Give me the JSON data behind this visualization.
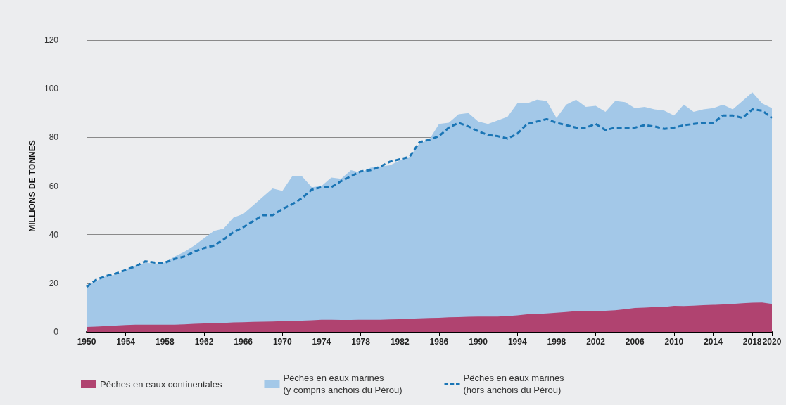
{
  "chart_data": {
    "type": "area",
    "ylabel": "MILLIONS DE TONNES",
    "stacked": true,
    "grid": "y",
    "legend": "bottom left",
    "marker": "none",
    "x": [
      1950,
      1951,
      1952,
      1953,
      1954,
      1955,
      1956,
      1957,
      1958,
      1959,
      1960,
      1961,
      1962,
      1963,
      1964,
      1965,
      1966,
      1967,
      1968,
      1969,
      1970,
      1971,
      1972,
      1973,
      1974,
      1975,
      1976,
      1977,
      1978,
      1979,
      1980,
      1981,
      1982,
      1983,
      1984,
      1985,
      1986,
      1987,
      1988,
      1989,
      1990,
      1991,
      1992,
      1993,
      1994,
      1995,
      1996,
      1997,
      1998,
      1999,
      2000,
      2001,
      2002,
      2003,
      2004,
      2005,
      2006,
      2007,
      2008,
      2009,
      2010,
      2011,
      2012,
      2013,
      2014,
      2015,
      2016,
      2017,
      2018,
      2019,
      2020
    ],
    "xlim": [
      1950,
      2020
    ],
    "xticks": [
      1950,
      1954,
      1958,
      1962,
      1966,
      1970,
      1974,
      1978,
      1982,
      1986,
      1990,
      1994,
      1998,
      2002,
      2006,
      2010,
      2014,
      2018,
      2020
    ],
    "ylim": [
      0,
      120
    ],
    "yticks": [
      0,
      20,
      40,
      60,
      80,
      100,
      120
    ],
    "series": [
      {
        "name": "Pêches en eaux continentales",
        "color": "#b04370",
        "values": [
          2,
          2.2,
          2.4,
          2.6,
          2.8,
          3,
          3,
          3,
          3,
          3,
          3.1,
          3.3,
          3.5,
          3.6,
          3.7,
          3.9,
          4,
          4.1,
          4.2,
          4.3,
          4.4,
          4.5,
          4.6,
          4.8,
          5,
          5,
          4.9,
          4.9,
          5,
          5,
          5,
          5.1,
          5.2,
          5.4,
          5.6,
          5.7,
          5.8,
          6,
          6.1,
          6.2,
          6.3,
          6.3,
          6.3,
          6.5,
          6.8,
          7.2,
          7.4,
          7.6,
          7.9,
          8.2,
          8.5,
          8.6,
          8.6,
          8.7,
          8.9,
          9.3,
          9.8,
          10,
          10.2,
          10.3,
          10.7,
          10.6,
          10.8,
          11,
          11.1,
          11.3,
          11.5,
          11.8,
          12,
          12.1,
          11.5
        ]
      },
      {
        "name": "Pêches en eaux marines\n(y compris anchois du Pérou)",
        "color": "#a3c8e8",
        "values": [
          17,
          18.8,
          20.6,
          20.9,
          22.7,
          24,
          25.5,
          25,
          25.5,
          28,
          29.9,
          32.2,
          35,
          37.9,
          38.8,
          43.1,
          44.5,
          47.9,
          51.3,
          54.7,
          53.6,
          59.5,
          59.4,
          54.7,
          55,
          58.5,
          58.1,
          61.6,
          60.5,
          62.5,
          63,
          63.4,
          65.3,
          66.6,
          71.9,
          73.3,
          79.7,
          80,
          83.4,
          83.8,
          80.2,
          79.2,
          80.7,
          82,
          87.2,
          86.8,
          88.1,
          87.4,
          80.1,
          85.3,
          87,
          83.9,
          84.4,
          81.8,
          86.1,
          85.2,
          82.2,
          82.5,
          81.3,
          80.7,
          78.3,
          82.9,
          79.7,
          80.5,
          80.9,
          82.2,
          80,
          83.2,
          86.5,
          81.9,
          80.5
        ]
      },
      {
        "name": "Pêches en eaux marines\n(hors anchois du Pérou)",
        "type": "line",
        "line_style": "dashed",
        "color": "#1a75b5",
        "values": [
          18.5,
          21.5,
          23,
          24,
          25.5,
          27,
          29,
          28.5,
          28.5,
          30,
          31,
          33,
          34.5,
          35.5,
          38,
          41,
          43,
          45.5,
          48,
          48,
          50.5,
          52.5,
          55,
          58.5,
          59.5,
          59.5,
          62,
          64,
          66,
          66.5,
          68,
          70,
          71,
          72,
          78,
          79,
          80.5,
          84,
          86,
          84.5,
          82.5,
          81,
          80.5,
          79.5,
          81.5,
          85.5,
          86.5,
          87.5,
          86,
          85,
          84,
          84,
          85.5,
          83,
          84,
          84,
          84,
          85,
          84.5,
          83.5,
          84,
          85,
          85.5,
          86,
          86,
          89,
          89,
          88,
          91.5,
          91,
          88
        ]
      }
    ]
  }
}
